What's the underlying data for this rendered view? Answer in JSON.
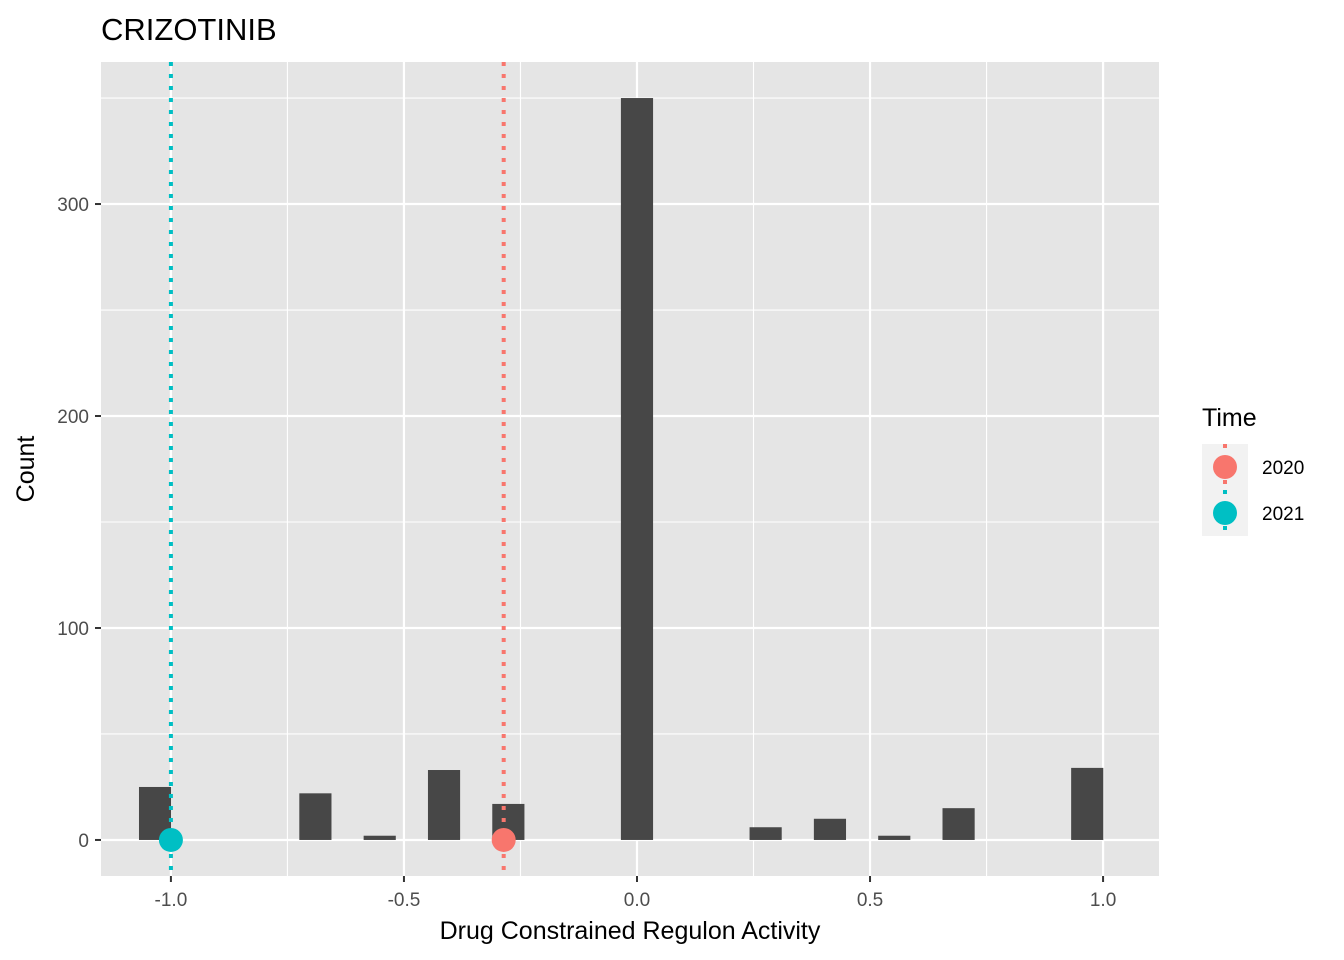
{
  "chart_data": {
    "type": "histogram",
    "title": "CRIZOTINIB",
    "xlabel": "Drug Constrained Regulon Activity",
    "ylabel": "Count",
    "xlim": [
      -1.15,
      1.12
    ],
    "ylim": [
      -17,
      367
    ],
    "x_ticks": [
      -1.0,
      -0.5,
      0.0,
      0.5,
      1.0
    ],
    "x_tick_labels": [
      "-1.0",
      "-0.5",
      "0.0",
      "0.5",
      "1.0"
    ],
    "y_ticks": [
      0,
      100,
      200,
      300
    ],
    "y_tick_labels": [
      "0",
      "100",
      "200",
      "300"
    ],
    "grid": true,
    "bin_width": 0.069,
    "bars": [
      {
        "x": -1.034,
        "count": 25
      },
      {
        "x": -0.69,
        "count": 22
      },
      {
        "x": -0.552,
        "count": 2
      },
      {
        "x": -0.414,
        "count": 33
      },
      {
        "x": -0.276,
        "count": 17
      },
      {
        "x": 0.0,
        "count": 350
      },
      {
        "x": 0.276,
        "count": 6
      },
      {
        "x": 0.414,
        "count": 10
      },
      {
        "x": 0.552,
        "count": 2
      },
      {
        "x": 0.69,
        "count": 15
      },
      {
        "x": 0.966,
        "count": 34
      }
    ],
    "bar_color": "#474747",
    "series": [
      {
        "name": "2020",
        "x": -0.286,
        "y": 0,
        "color": "#F8766D"
      },
      {
        "name": "2021",
        "x": -1.0,
        "y": 0,
        "color": "#00BFC4"
      }
    ],
    "legend": {
      "title": "Time",
      "position": "right"
    }
  }
}
